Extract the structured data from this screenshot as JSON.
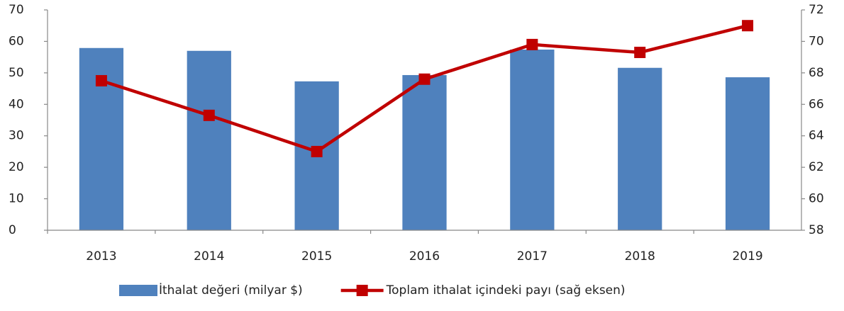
{
  "chart_data": {
    "type": "combo",
    "categories": [
      "2013",
      "2014",
      "2015",
      "2016",
      "2017",
      "2018",
      "2019"
    ],
    "series": [
      {
        "name": "İthalat değeri (milyar $)",
        "type": "bar",
        "color": "#4f81bd",
        "values": [
          57.9,
          57.0,
          47.3,
          49.3,
          57.4,
          51.6,
          48.6
        ]
      },
      {
        "name": "Toplam ithalat içindeki payı (sağ eksen)",
        "type": "line",
        "axis": "y2",
        "color": "#c00000",
        "values": [
          67.5,
          65.3,
          63.0,
          67.6,
          69.8,
          69.3,
          71.0
        ]
      }
    ],
    "ylim": [
      0,
      70
    ],
    "yticks": [
      0,
      10,
      20,
      30,
      40,
      50,
      60,
      70
    ],
    "y2lim": [
      58,
      72
    ],
    "y2ticks": [
      58,
      60,
      62,
      64,
      66,
      68,
      70,
      72
    ],
    "legend": "bottom"
  }
}
